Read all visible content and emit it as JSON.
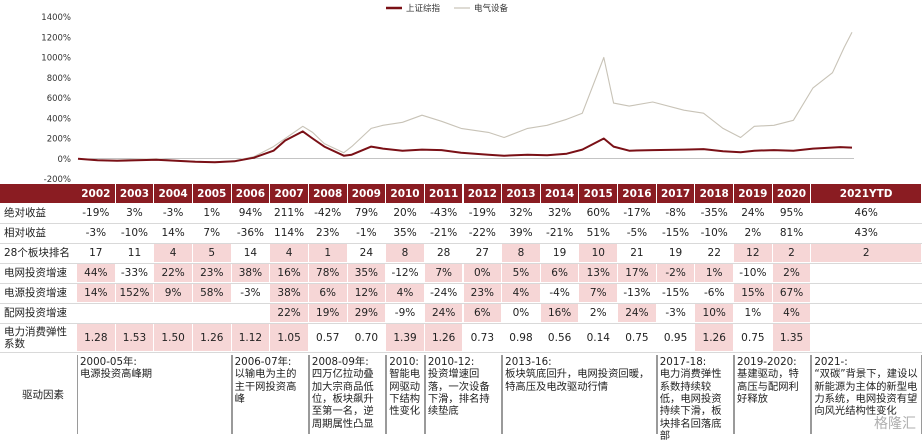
{
  "chart_data": {
    "type": "line",
    "title": "",
    "xlabel": "",
    "ylabel": "",
    "ylim": [
      -200,
      1400
    ],
    "y_ticks": [
      "1400%",
      "1200%",
      "1000%",
      "800%",
      "600%",
      "400%",
      "200%",
      "0%",
      "-200%"
    ],
    "legend_placement": "top-center",
    "series": [
      {
        "name": "上证综指",
        "color": "#7a1016",
        "points": [
          [
            2002.0,
            0
          ],
          [
            2002.5,
            -15
          ],
          [
            2003.0,
            -20
          ],
          [
            2003.5,
            -15
          ],
          [
            2004.0,
            -10
          ],
          [
            2004.5,
            -20
          ],
          [
            2005.0,
            -30
          ],
          [
            2005.5,
            -35
          ],
          [
            2006.0,
            -25
          ],
          [
            2006.5,
            10
          ],
          [
            2007.0,
            80
          ],
          [
            2007.3,
            180
          ],
          [
            2007.75,
            270
          ],
          [
            2008.0,
            200
          ],
          [
            2008.3,
            120
          ],
          [
            2008.8,
            30
          ],
          [
            2009.0,
            40
          ],
          [
            2009.5,
            120
          ],
          [
            2009.8,
            100
          ],
          [
            2010.3,
            80
          ],
          [
            2010.8,
            90
          ],
          [
            2011.3,
            85
          ],
          [
            2011.8,
            60
          ],
          [
            2012.5,
            40
          ],
          [
            2012.9,
            30
          ],
          [
            2013.5,
            40
          ],
          [
            2014.0,
            35
          ],
          [
            2014.5,
            50
          ],
          [
            2014.9,
            90
          ],
          [
            2015.45,
            200
          ],
          [
            2015.7,
            120
          ],
          [
            2016.1,
            80
          ],
          [
            2016.7,
            85
          ],
          [
            2017.5,
            90
          ],
          [
            2018.0,
            95
          ],
          [
            2018.5,
            75
          ],
          [
            2018.95,
            65
          ],
          [
            2019.3,
            80
          ],
          [
            2019.8,
            85
          ],
          [
            2020.3,
            80
          ],
          [
            2020.8,
            100
          ],
          [
            2021.5,
            115
          ],
          [
            2021.8,
            110
          ]
        ]
      },
      {
        "name": "电气设备",
        "color": "#c8c3b7",
        "points": [
          [
            2002.0,
            0
          ],
          [
            2002.5,
            -10
          ],
          [
            2003.0,
            -12
          ],
          [
            2003.5,
            -5
          ],
          [
            2004.0,
            0
          ],
          [
            2004.5,
            -15
          ],
          [
            2005.0,
            -25
          ],
          [
            2005.5,
            -30
          ],
          [
            2006.0,
            -20
          ],
          [
            2006.5,
            20
          ],
          [
            2007.0,
            120
          ],
          [
            2007.3,
            200
          ],
          [
            2007.75,
            320
          ],
          [
            2008.0,
            260
          ],
          [
            2008.3,
            150
          ],
          [
            2008.8,
            60
          ],
          [
            2009.0,
            120
          ],
          [
            2009.5,
            300
          ],
          [
            2009.8,
            330
          ],
          [
            2010.3,
            360
          ],
          [
            2010.8,
            430
          ],
          [
            2011.3,
            370
          ],
          [
            2011.8,
            300
          ],
          [
            2012.5,
            260
          ],
          [
            2012.9,
            210
          ],
          [
            2013.5,
            300
          ],
          [
            2014.0,
            330
          ],
          [
            2014.5,
            390
          ],
          [
            2014.9,
            450
          ],
          [
            2015.45,
            1000
          ],
          [
            2015.7,
            550
          ],
          [
            2016.1,
            520
          ],
          [
            2016.7,
            560
          ],
          [
            2017.5,
            480
          ],
          [
            2018.0,
            450
          ],
          [
            2018.5,
            300
          ],
          [
            2018.95,
            210
          ],
          [
            2019.3,
            320
          ],
          [
            2019.8,
            330
          ],
          [
            2020.3,
            380
          ],
          [
            2020.8,
            700
          ],
          [
            2021.3,
            850
          ],
          [
            2021.6,
            1100
          ],
          [
            2021.8,
            1250
          ]
        ]
      }
    ]
  },
  "table": {
    "years": [
      "2002",
      "2003",
      "2004",
      "2005",
      "2006",
      "2007",
      "2008",
      "2009",
      "2010",
      "2011",
      "2012",
      "2013",
      "2014",
      "2015",
      "2016",
      "2017",
      "2018",
      "2019",
      "2020",
      "2021YTD"
    ],
    "rows": [
      {
        "label": "绝对收益",
        "values": [
          "-19%",
          "3%",
          "-3%",
          "1%",
          "94%",
          "211%",
          "-42%",
          "79%",
          "20%",
          "-43%",
          "-19%",
          "32%",
          "32%",
          "60%",
          "-17%",
          "-8%",
          "-35%",
          "24%",
          "95%",
          "46%"
        ],
        "pink": []
      },
      {
        "label": "相对收益",
        "values": [
          "-3%",
          "-10%",
          "14%",
          "7%",
          "-36%",
          "114%",
          "23%",
          "-1%",
          "35%",
          "-21%",
          "-22%",
          "39%",
          "-21%",
          "51%",
          "-5%",
          "-15%",
          "-10%",
          "2%",
          "81%",
          "43%"
        ],
        "pink": []
      },
      {
        "label": "28个板块排名",
        "values": [
          "17",
          "11",
          "4",
          "5",
          "14",
          "4",
          "1",
          "24",
          "8",
          "28",
          "27",
          "8",
          "19",
          "10",
          "21",
          "19",
          "22",
          "12",
          "2",
          "2"
        ],
        "pink": [
          2,
          3,
          5,
          6,
          8,
          11,
          13,
          17,
          18,
          19
        ]
      },
      {
        "label": "电网投资增速",
        "values": [
          "44%",
          "-33%",
          "22%",
          "23%",
          "38%",
          "16%",
          "78%",
          "35%",
          "-12%",
          "7%",
          "0%",
          "5%",
          "6%",
          "13%",
          "17%",
          "-2%",
          "1%",
          "-10%",
          "2%",
          ""
        ],
        "pink": [
          0,
          2,
          3,
          4,
          5,
          6,
          7,
          9,
          10,
          11,
          12,
          13,
          14,
          15,
          16,
          18
        ]
      },
      {
        "label": "电源投资增速",
        "values": [
          "14%",
          "152%",
          "9%",
          "58%",
          "-3%",
          "38%",
          "6%",
          "12%",
          "4%",
          "-24%",
          "23%",
          "4%",
          "-4%",
          "7%",
          "-13%",
          "-15%",
          "-6%",
          "15%",
          "67%",
          ""
        ],
        "pink": [
          0,
          1,
          2,
          3,
          5,
          6,
          7,
          8,
          10,
          11,
          13,
          17,
          18
        ]
      },
      {
        "label": "配网投资增速",
        "values": [
          "",
          "",
          "",
          "",
          "",
          "22%",
          "19%",
          "29%",
          "-9%",
          "24%",
          "6%",
          "0%",
          "16%",
          "2%",
          "24%",
          "-3%",
          "10%",
          "1%",
          "4%",
          ""
        ],
        "pink": [
          5,
          6,
          7,
          9,
          10,
          12,
          14,
          16,
          18
        ]
      },
      {
        "label": "电力消费弹性系数",
        "values": [
          "1.28",
          "1.53",
          "1.50",
          "1.26",
          "1.12",
          "1.05",
          "0.57",
          "0.70",
          "1.39",
          "1.26",
          "0.73",
          "0.98",
          "0.56",
          "0.14",
          "0.75",
          "0.95",
          "1.26",
          "0.75",
          "1.35",
          ""
        ],
        "pink": [
          0,
          1,
          2,
          3,
          4,
          5,
          8,
          9,
          16,
          18
        ]
      }
    ],
    "driver_label": "驱动因素",
    "drivers": [
      "2000-05年:\n电源投资高峰期",
      "2006-07年:\n以输电为主的主干网投资高峰",
      "2008-09年:\n四万亿拉动叠加大宗商品低位，板块飙升至第一名，逆周期属性凸显",
      "2010:\n智能电网驱动下结构性变化",
      "2010-12:\n投资增速回落，一次设备下滑，排名持续垫底",
      "2013-16:\n板块筑底回升，电网投资回暖，特高压及电改驱动行情",
      "2017-18:\n电力消费弹性系数持续较低，电网投资持续下滑，板块排名回落底部",
      "2019-2020:\n基建驱动，特高压与配网利好释放",
      "2021-:\n“双碳”背景下，建设以新能源为主体的新型电力系统，电网投资有望向风光结构性变化"
    ],
    "watermark": "格隆汇"
  }
}
